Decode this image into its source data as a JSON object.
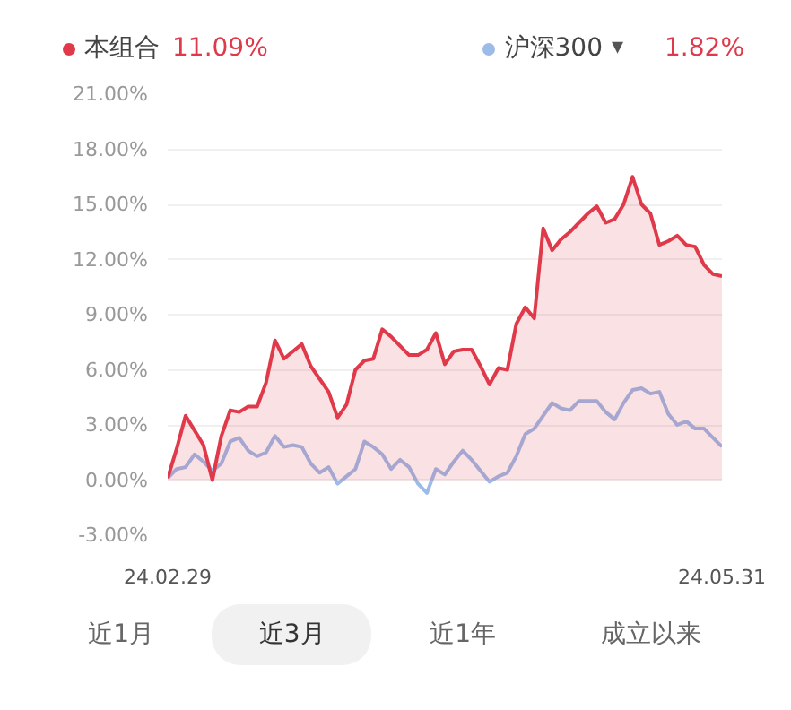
{
  "chart_data": {
    "type": "line",
    "legend": "top",
    "grid": "y",
    "marker": "none",
    "line_style": "solid",
    "categories": [
      "24.02.29",
      null,
      null,
      null,
      null,
      null,
      null,
      null,
      null,
      null,
      null,
      null,
      null,
      null,
      null,
      null,
      null,
      null,
      null,
      null,
      null,
      null,
      null,
      null,
      null,
      null,
      null,
      null,
      null,
      null,
      null,
      null,
      null,
      null,
      null,
      null,
      null,
      null,
      null,
      null,
      null,
      null,
      null,
      null,
      null,
      null,
      null,
      null,
      null,
      null,
      null,
      null,
      null,
      null,
      null,
      null,
      null,
      null,
      null,
      null,
      null,
      null,
      "24.05.31"
    ],
    "series": [
      {
        "name": "本组合",
        "type": "area",
        "color": "#e0394a",
        "values": [
          0.1,
          1.7,
          3.5,
          2.7,
          1.9,
          0.0,
          2.4,
          3.8,
          3.7,
          4.0,
          4.0,
          5.3,
          7.6,
          6.6,
          7.0,
          7.4,
          6.2,
          5.5,
          4.8,
          3.4,
          4.1,
          6.0,
          6.5,
          6.6,
          8.2,
          7.8,
          7.3,
          6.8,
          6.8,
          7.1,
          8.0,
          6.3,
          7.0,
          7.1,
          7.1,
          6.2,
          5.2,
          6.1,
          6.0,
          8.5,
          9.4,
          8.8,
          13.7,
          12.5,
          13.1,
          13.5,
          14.0,
          14.5,
          14.9,
          14.0,
          14.2,
          15.0,
          16.5,
          15.0,
          14.5,
          12.8,
          13.0,
          13.3,
          12.8,
          12.7,
          11.7,
          11.2,
          11.09
        ]
      },
      {
        "name": "沪深300",
        "color": "#9dbbe8",
        "values": [
          0.1,
          0.6,
          0.7,
          1.4,
          1.0,
          0.5,
          0.9,
          2.1,
          2.3,
          1.6,
          1.3,
          1.5,
          2.4,
          1.8,
          1.9,
          1.8,
          0.9,
          0.4,
          0.7,
          -0.2,
          0.2,
          0.6,
          2.1,
          1.8,
          1.4,
          0.6,
          1.1,
          0.7,
          -0.2,
          -0.7,
          0.6,
          0.3,
          1.0,
          1.6,
          1.1,
          0.5,
          -0.1,
          0.2,
          0.4,
          1.3,
          2.5,
          2.8,
          3.5,
          4.2,
          3.9,
          3.8,
          4.3,
          4.3,
          4.3,
          3.7,
          3.3,
          4.2,
          4.9,
          5.0,
          4.7,
          4.8,
          3.6,
          3.0,
          3.2,
          2.8,
          2.8,
          2.3,
          1.82
        ]
      }
    ],
    "ylim": [
      -3,
      21
    ],
    "yticks": [
      {
        "value": -3,
        "label": "-3.00%"
      },
      {
        "value": 0,
        "label": "0.00%"
      },
      {
        "value": 3,
        "label": "3.00%"
      },
      {
        "value": 6,
        "label": "6.00%"
      },
      {
        "value": 9,
        "label": "9.00%"
      },
      {
        "value": 12,
        "label": "12.00%"
      },
      {
        "value": 15,
        "label": "15.00%"
      },
      {
        "value": 18,
        "label": "18.00%"
      },
      {
        "value": 21,
        "label": "21.00%"
      }
    ],
    "annotations": [
      "11.09%",
      "1.82%",
      "▾",
      "近1月",
      "近3月",
      "近1年",
      "成立以来"
    ]
  }
}
